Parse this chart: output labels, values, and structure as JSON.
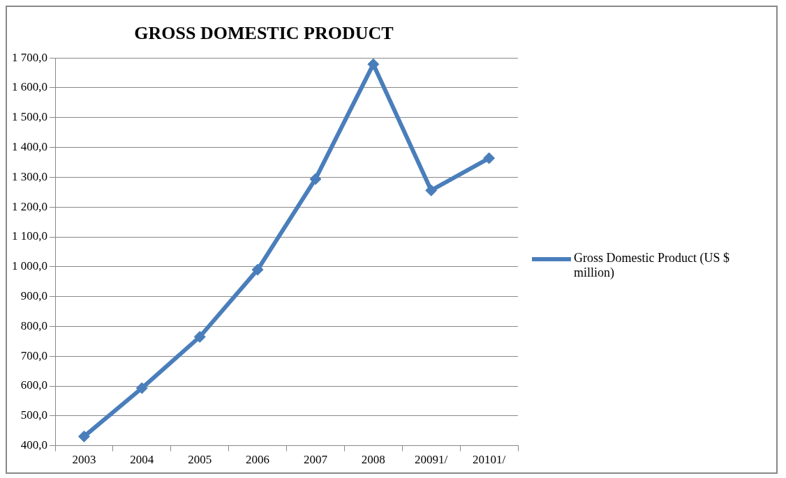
{
  "chart_data": {
    "type": "line",
    "title": "GROSS DOMESTIC PRODUCT",
    "categories": [
      "2003",
      "2004",
      "2005",
      "2006",
      "2007",
      "2008",
      "20091/",
      "20101/"
    ],
    "series": [
      {
        "name": "Gross Domestic Product (US $ million)",
        "color": "#4a7ebb",
        "values": [
          431,
          593,
          765,
          990,
          1294,
          1679,
          1256,
          1364
        ]
      }
    ],
    "ylim": [
      400,
      1700
    ],
    "yticks": [
      {
        "value": 400,
        "label": "400,0"
      },
      {
        "value": 500,
        "label": "500,0"
      },
      {
        "value": 600,
        "label": "600,0"
      },
      {
        "value": 700,
        "label": "700,0"
      },
      {
        "value": 800,
        "label": "800,0"
      },
      {
        "value": 900,
        "label": "900,0"
      },
      {
        "value": 1000,
        "label": "1 000,0"
      },
      {
        "value": 1100,
        "label": "1 100,0"
      },
      {
        "value": 1200,
        "label": "1 200,0"
      },
      {
        "value": 1300,
        "label": "1 300,0"
      },
      {
        "value": 1400,
        "label": "1 400,0"
      },
      {
        "value": 1500,
        "label": "1 500,0"
      },
      {
        "value": 1600,
        "label": "1 600,0"
      },
      {
        "value": 1700,
        "label": "1 700,0"
      }
    ],
    "grid": "y",
    "legend": "right",
    "marker": "diamond",
    "line_style": "solid"
  }
}
